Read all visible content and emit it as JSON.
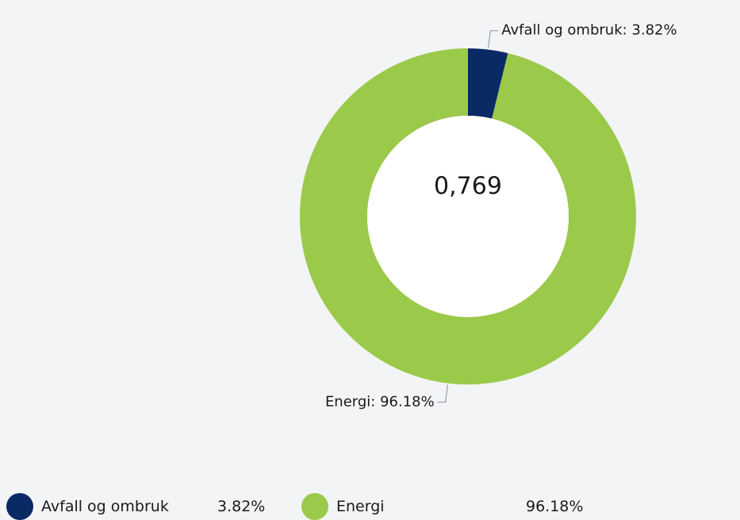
{
  "chart_data": {
    "type": "pie",
    "variant": "donut",
    "center_label": "0,769",
    "slices": [
      {
        "name": "Avfall og ombruk",
        "value": 3.82,
        "label": "Avfall og ombruk: 3.82%",
        "legend_value": "3.82%",
        "color": "#0a2a66"
      },
      {
        "name": "Energi",
        "value": 96.18,
        "label": "Energi: 96.18%",
        "legend_value": "96.18%",
        "color": "#9bc94a"
      }
    ],
    "legend_placement": "bottom-left"
  },
  "colors": {
    "background": "#f2f4f6",
    "leader_line": "#9aa0a6"
  }
}
